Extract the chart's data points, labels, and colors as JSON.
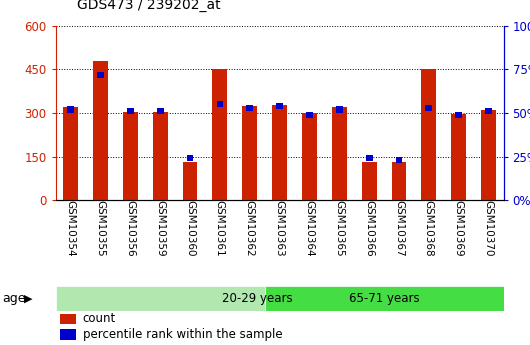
{
  "title": "GDS473 / 239202_at",
  "categories": [
    "GSM10354",
    "GSM10355",
    "GSM10356",
    "GSM10359",
    "GSM10360",
    "GSM10361",
    "GSM10362",
    "GSM10363",
    "GSM10364",
    "GSM10365",
    "GSM10366",
    "GSM10367",
    "GSM10368",
    "GSM10369",
    "GSM10370"
  ],
  "count_values": [
    320,
    480,
    305,
    305,
    130,
    450,
    325,
    328,
    300,
    320,
    130,
    130,
    450,
    297,
    310
  ],
  "percentile_values": [
    52,
    72,
    51,
    51,
    24,
    55,
    53,
    54,
    49,
    52,
    24,
    23,
    53,
    49,
    51
  ],
  "group1_label": "20-29 years",
  "group2_label": "65-71 years",
  "group1_count": 7,
  "group2_count": 8,
  "ylim_left": [
    0,
    600
  ],
  "ylim_right": [
    0,
    100
  ],
  "yticks_left": [
    0,
    150,
    300,
    450,
    600
  ],
  "yticks_right": [
    0,
    25,
    50,
    75,
    100
  ],
  "bar_color": "#CC2200",
  "pct_color": "#0000CC",
  "bg_plot": "#ffffff",
  "bg_group1": "#b0e8b0",
  "bg_group2": "#44dd44",
  "legend_count": "count",
  "legend_pct": "percentile rank within the sample",
  "bar_width": 0.5
}
